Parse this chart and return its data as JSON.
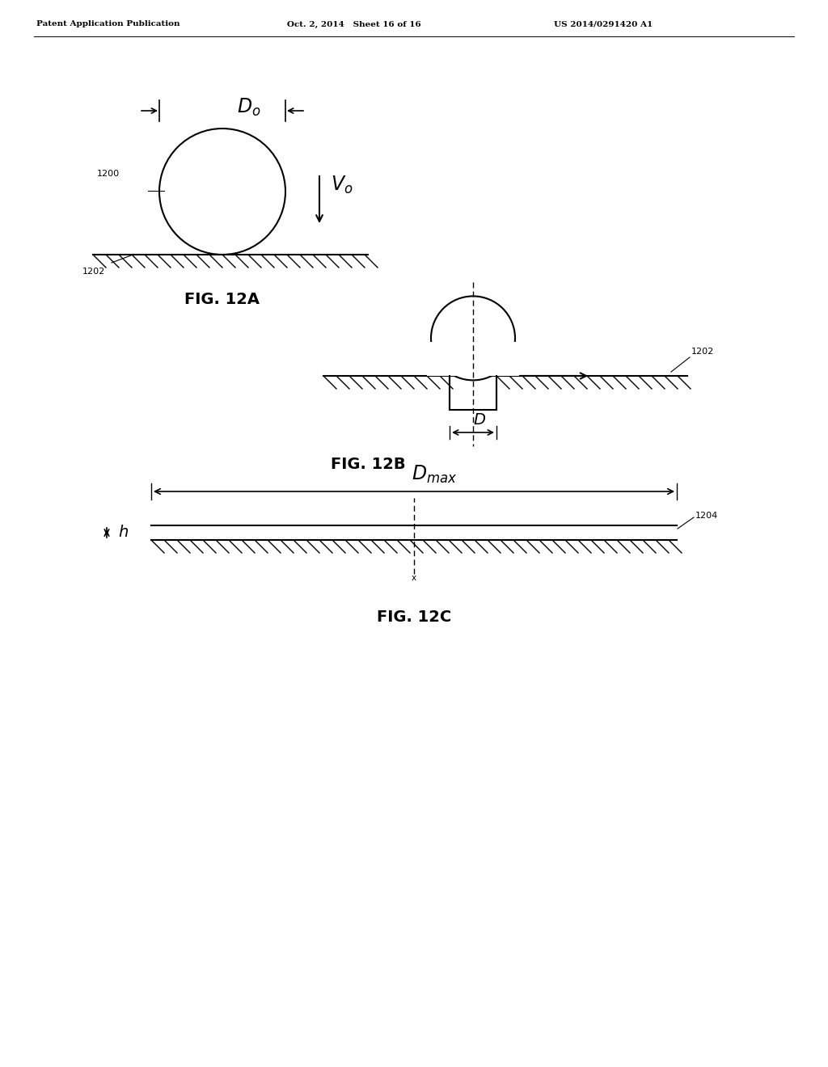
{
  "header_left": "Patent Application Publication",
  "header_mid": "Oct. 2, 2014   Sheet 16 of 16",
  "header_right": "US 2014/0291420 A1",
  "fig12a_label": "FIG. 12A",
  "fig12b_label": "FIG. 12B",
  "fig12c_label": "FIG. 12C",
  "label_1200": "1200",
  "label_1202a": "1202",
  "label_1202b": "1202",
  "label_1204": "1204",
  "label_Do": "$D_o$",
  "label_Vo": "$V_o$",
  "label_D": "$D$",
  "label_Dmax": "$D_{max}$",
  "label_h": "$h$",
  "bg_color": "#ffffff",
  "line_color": "#000000"
}
